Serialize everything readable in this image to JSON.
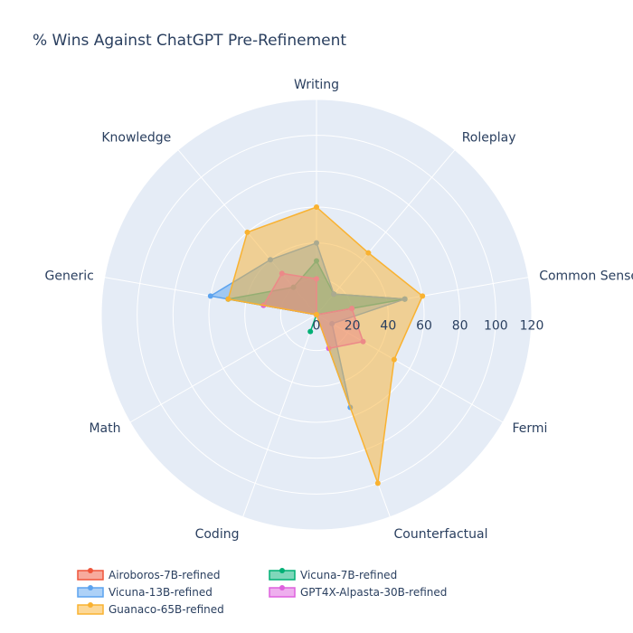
{
  "chart_data": {
    "type": "radar",
    "title": "% Wins Against ChatGPT Pre-Refinement",
    "categories": [
      "Writing",
      "Roleplay",
      "Common Sense",
      "Fermi",
      "Counterfactual",
      "Coding",
      "Math",
      "Generic",
      "Knowledge"
    ],
    "radial_range": [
      0,
      120
    ],
    "radial_ticks": [
      0,
      20,
      40,
      60,
      80,
      100,
      120
    ],
    "grid": true,
    "legend_position": "bottom-left",
    "series": [
      {
        "name": "Airoboros-7B-refined",
        "color": "#EF553B",
        "values": [
          0,
          0,
          20,
          0,
          0,
          0,
          0,
          30,
          0
        ]
      },
      {
        "name": "Vicuna-7B-refined",
        "color": "#00B075",
        "values": [
          30,
          15,
          50,
          0,
          0,
          10,
          0,
          50,
          20
        ]
      },
      {
        "name": "Vicuna-13B-refined",
        "color": "#5CA3EF",
        "values": [
          40,
          15,
          50,
          10,
          55,
          0,
          0,
          60,
          40
        ]
      },
      {
        "name": "GPT4X-Alpasta-30B-refined",
        "color": "#DE60DE",
        "values": [
          20,
          0,
          20,
          30,
          20,
          0,
          0,
          30,
          30
        ]
      },
      {
        "name": "Guanaco-65B-refined",
        "color": "#F9B231",
        "values": [
          60,
          45,
          60,
          50,
          100,
          0,
          0,
          50,
          60
        ]
      }
    ]
  }
}
